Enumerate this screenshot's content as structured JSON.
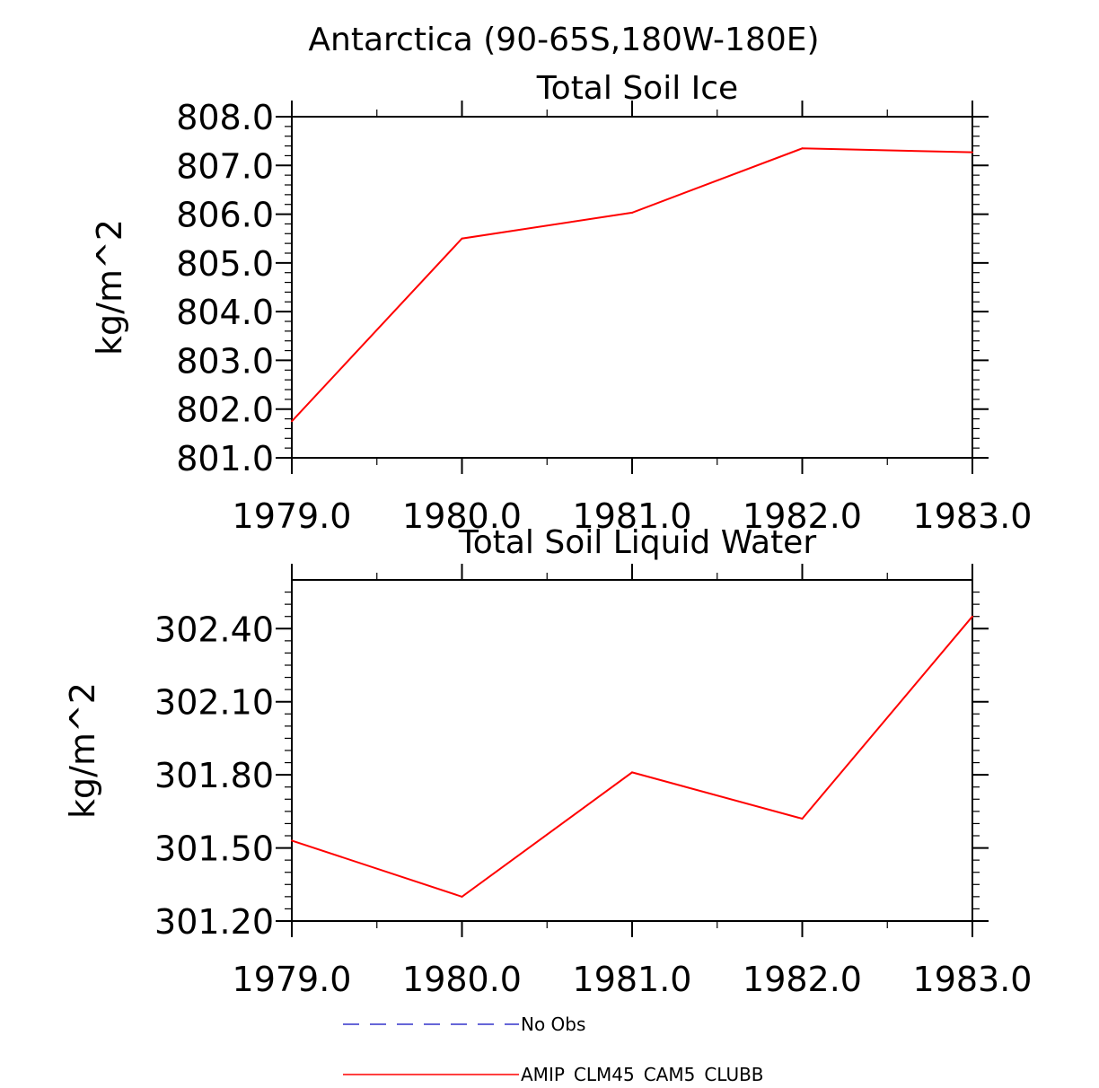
{
  "figure": {
    "main_title": "Antarctica (90-65S,180W-180E)"
  },
  "chart_data": [
    {
      "type": "line",
      "title": "Total Soil Ice",
      "xlabel": "",
      "ylabel": "kg/m^2",
      "xlim": [
        1979,
        1983
      ],
      "ylim": [
        801.0,
        808.0
      ],
      "x_ticks": [
        1979,
        1980,
        1981,
        1982,
        1983
      ],
      "x_tick_labels": [
        "1979.0",
        "1980.0",
        "1981.0",
        "1982.0",
        "1983.0"
      ],
      "y_ticks": [
        801,
        802,
        803,
        804,
        805,
        806,
        807,
        808
      ],
      "y_tick_labels": [
        "801.0",
        "802.0",
        "803.0",
        "804.0",
        "805.0",
        "806.0",
        "807.0",
        "808.0"
      ],
      "y_minor_step": 0.2,
      "x_minor_step": 0.5,
      "series": [
        {
          "name": "AMIP_CLM45_CAM5_CLUBB",
          "color": "#ff0000",
          "x": [
            1979,
            1980,
            1981,
            1982,
            1983
          ],
          "values": [
            801.75,
            805.5,
            806.03,
            807.35,
            807.27
          ]
        }
      ]
    },
    {
      "type": "line",
      "title": "Total Soil Liquid Water",
      "xlabel": "",
      "ylabel": "kg/m^2",
      "xlim": [
        1979,
        1983
      ],
      "ylim": [
        301.2,
        302.6
      ],
      "x_ticks": [
        1979,
        1980,
        1981,
        1982,
        1983
      ],
      "x_tick_labels": [
        "1979.0",
        "1980.0",
        "1981.0",
        "1982.0",
        "1983.0"
      ],
      "y_ticks": [
        301.2,
        301.5,
        301.8,
        302.1,
        302.4
      ],
      "y_tick_labels": [
        "301.20",
        "301.50",
        "301.80",
        "302.10",
        "302.40"
      ],
      "y_minor_step": 0.05,
      "x_minor_step": 0.5,
      "series": [
        {
          "name": "AMIP_CLM45_CAM5_CLUBB",
          "color": "#ff0000",
          "x": [
            1979,
            1980,
            1981,
            1982,
            1983
          ],
          "values": [
            301.53,
            301.3,
            301.81,
            301.62,
            302.45
          ]
        }
      ]
    }
  ],
  "legend": {
    "entries": [
      {
        "label": "No Obs",
        "color": "#3333cc",
        "style": "dashed"
      },
      {
        "label": "AMIP_CLM45_CAM5_CLUBB",
        "color": "#ff0000",
        "style": "solid"
      }
    ]
  }
}
